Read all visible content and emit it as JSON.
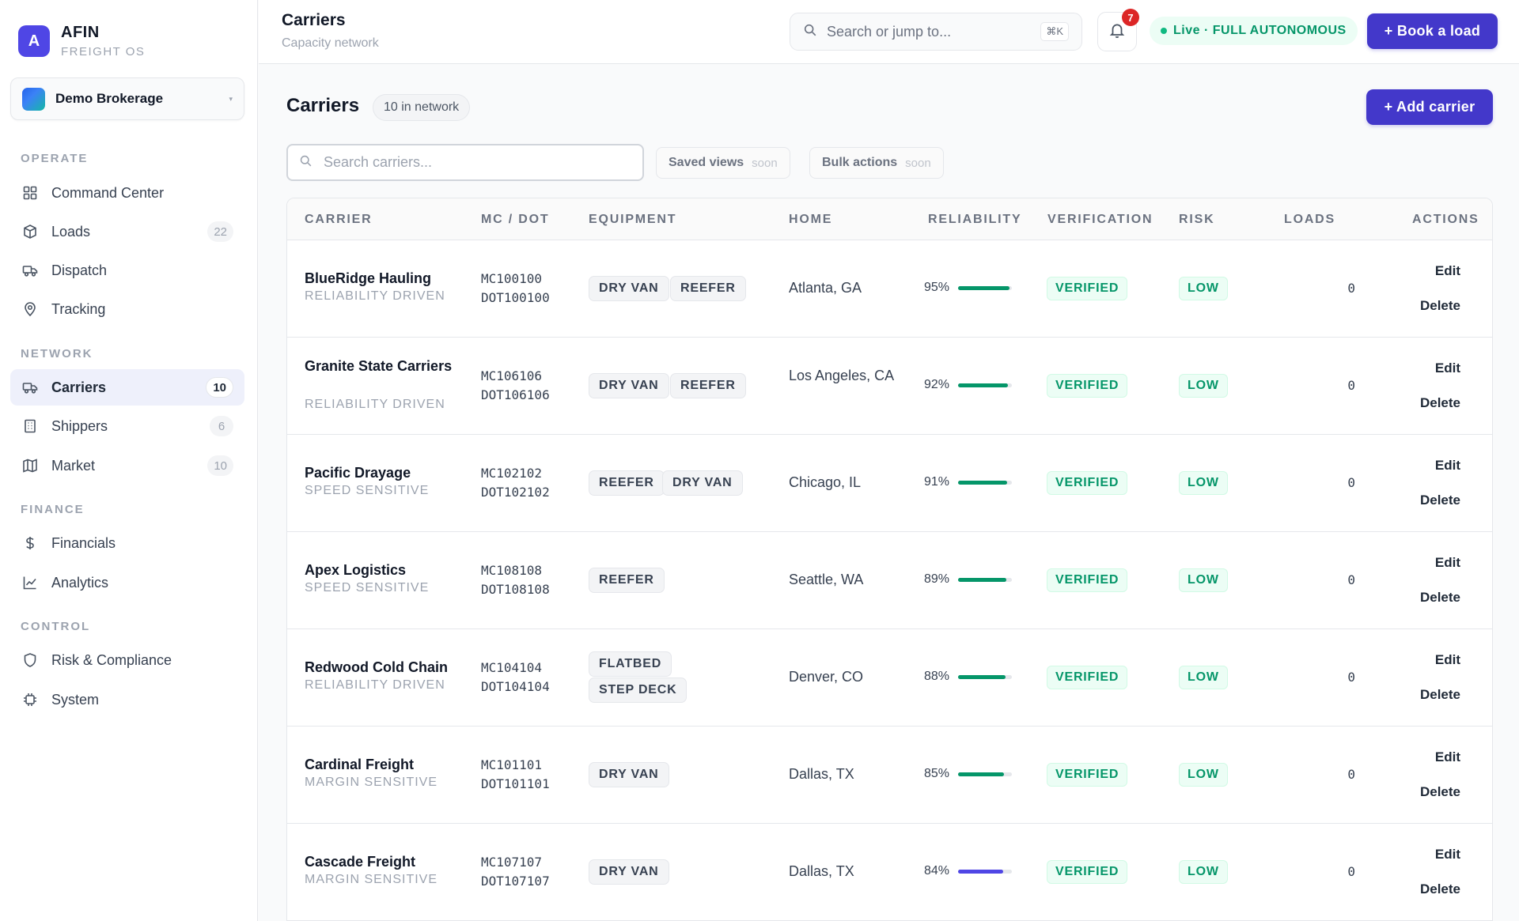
{
  "brand": {
    "logo": "A",
    "name": "AFIN",
    "subtitle": "FREIGHT OS"
  },
  "org": {
    "name": "Demo Brokerage",
    "caret": "▾"
  },
  "nav": {
    "operate": "OPERATE",
    "command_center": "Command Center",
    "loads": "Loads",
    "loads_count": "22",
    "dispatch": "Dispatch",
    "tracking": "Tracking",
    "network": "NETWORK",
    "carriers": "Carriers",
    "carriers_count": "10",
    "shippers": "Shippers",
    "shippers_count": "6",
    "market": "Market",
    "market_count": "10",
    "finance": "FINANCE",
    "financials": "Financials",
    "analytics": "Analytics",
    "control": "CONTROL",
    "risk": "Risk & Compliance",
    "system": "System"
  },
  "topbar": {
    "title": "Carriers",
    "subtitle": "Capacity network",
    "search_placeholder": "Search or jump to...",
    "shortcut": "⌘K",
    "notifications": "7",
    "live": "Live · FULL AUTONOMOUS",
    "book_load": "+ Book a load"
  },
  "main": {
    "title": "Carriers",
    "count": "10 in network",
    "add_carrier": "+ Add carrier",
    "search_placeholder": "Search carriers...",
    "saved_views": "Saved views",
    "bulk_actions": "Bulk actions",
    "soon": "soon"
  },
  "table": {
    "headers": {
      "carrier": "CARRIER",
      "mc_dot": "MC / DOT",
      "equipment": "EQUIPMENT",
      "home": "HOME",
      "reliability": "RELIABILITY",
      "verification": "VERIFICATION",
      "risk": "RISK",
      "loads": "LOADS",
      "actions": "ACTIONS"
    },
    "edit": "Edit",
    "delete": "Delete",
    "rows": [
      {
        "name": "BlueRidge Hauling",
        "tag": "RELIABILITY DRIVEN",
        "mc": "MC100100",
        "dot": "DOT100100",
        "equipment": [
          "DRY VAN",
          "REEFER"
        ],
        "home": "Atlanta, GA",
        "reliability": "95%",
        "reliability_value": 0.95,
        "bar_color": "#059669",
        "verification": "VERIFIED",
        "risk": "LOW",
        "loads": "0"
      },
      {
        "name": "Granite State Carriers",
        "tag": "RELIABILITY DRIVEN",
        "mc": "MC106106",
        "dot": "DOT106106",
        "equipment": [
          "DRY VAN",
          "REEFER"
        ],
        "home": "Los Angeles, CA",
        "reliability": "92%",
        "reliability_value": 0.92,
        "bar_color": "#059669",
        "verification": "VERIFIED",
        "risk": "LOW",
        "loads": "0"
      },
      {
        "name": "Pacific Drayage",
        "tag": "SPEED SENSITIVE",
        "mc": "MC102102",
        "dot": "DOT102102",
        "equipment": [
          "REEFER",
          "DRY VAN"
        ],
        "home": "Chicago, IL",
        "reliability": "91%",
        "reliability_value": 0.91,
        "bar_color": "#059669",
        "verification": "VERIFIED",
        "risk": "LOW",
        "loads": "0"
      },
      {
        "name": "Apex Logistics",
        "tag": "SPEED SENSITIVE",
        "mc": "MC108108",
        "dot": "DOT108108",
        "equipment": [
          "REEFER"
        ],
        "home": "Seattle, WA",
        "reliability": "89%",
        "reliability_value": 0.89,
        "bar_color": "#059669",
        "verification": "VERIFIED",
        "risk": "LOW",
        "loads": "0"
      },
      {
        "name": "Redwood Cold Chain",
        "tag": "RELIABILITY DRIVEN",
        "mc": "MC104104",
        "dot": "DOT104104",
        "equipment": [
          "FLATBED",
          "STEP DECK"
        ],
        "home": "Denver, CO",
        "reliability": "88%",
        "reliability_value": 0.88,
        "bar_color": "#059669",
        "verification": "VERIFIED",
        "risk": "LOW",
        "loads": "0"
      },
      {
        "name": "Cardinal Freight",
        "tag": "MARGIN SENSITIVE",
        "mc": "MC101101",
        "dot": "DOT101101",
        "equipment": [
          "DRY VAN"
        ],
        "home": "Dallas, TX",
        "reliability": "85%",
        "reliability_value": 0.85,
        "bar_color": "#059669",
        "verification": "VERIFIED",
        "risk": "LOW",
        "loads": "0"
      },
      {
        "name": "Cascade Freight",
        "tag": "MARGIN SENSITIVE",
        "mc": "MC107107",
        "dot": "DOT107107",
        "equipment": [
          "DRY VAN"
        ],
        "home": "Dallas, TX",
        "reliability": "84%",
        "reliability_value": 0.84,
        "bar_color": "#4f46e5",
        "verification": "VERIFIED",
        "risk": "LOW",
        "loads": "0"
      }
    ]
  }
}
